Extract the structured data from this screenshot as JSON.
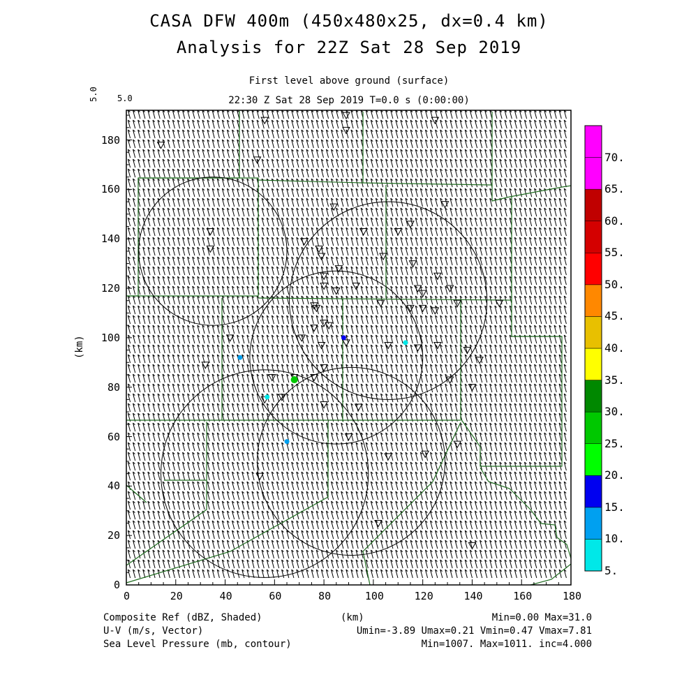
{
  "header": {
    "title_line1": "CASA DFW 400m (450x480x25, dx=0.4 km)",
    "title_line2": "Analysis for 22Z Sat 28 Sep 2019",
    "level": "First level above ground (surface)",
    "time": "22:30 Z Sat 28 Sep 2019    T=0.0 s (0:00:00)",
    "scale_rot": "5.0",
    "scale_label": "5.0"
  },
  "axes": {
    "x_ticks": [
      "0",
      "20",
      "40",
      "60",
      "80",
      "100",
      "120",
      "140",
      "160",
      "180"
    ],
    "y_ticks": [
      "0",
      "20",
      "40",
      "60",
      "80",
      "100",
      "120",
      "140",
      "160",
      "180"
    ],
    "x_label": "(km)",
    "y_label": "(km)"
  },
  "colorbar": {
    "labels": [
      "5.",
      "10.",
      "15.",
      "20.",
      "25.",
      "30.",
      "35.",
      "40.",
      "45.",
      "50.",
      "55.",
      "60.",
      "65.",
      "70."
    ],
    "colors": [
      "#00e8e8",
      "#00a0f0",
      "#0000f0",
      "#00ff00",
      "#00c800",
      "#008800",
      "#ffff00",
      "#e8c000",
      "#ff8800",
      "#ff0000",
      "#d40000",
      "#c00000",
      "#ff00ff",
      "#ff00ff"
    ]
  },
  "footer": {
    "line1_left": "Composite Ref (dBZ, Shaded)",
    "line2_left": "U-V (m/s, Vector)",
    "line3_left": "Sea Level Pressure (mb, contour)",
    "line1_right": "Min=0.00 Max=31.0",
    "line2_right": "Umin=-3.89 Umax=0.21 Vmin=0.47 Vmax=7.81",
    "line3_right": "Min=1007. Max=1011. inc=4.000"
  },
  "map_data": {
    "domain_km": [
      0,
      180,
      0,
      190
    ],
    "radar_rings_km": [
      {
        "cx": 35,
        "cy": 135,
        "r": 30
      },
      {
        "cx": 106,
        "cy": 115,
        "r": 40
      },
      {
        "cx": 85,
        "cy": 92,
        "r": 35
      },
      {
        "cx": 56,
        "cy": 45,
        "r": 42
      },
      {
        "cx": 91,
        "cy": 50,
        "r": 38
      }
    ],
    "echoes_km": [
      {
        "x": 46,
        "y": 92,
        "dbz": 12
      },
      {
        "x": 88,
        "y": 100,
        "dbz": 15
      },
      {
        "x": 113,
        "y": 98,
        "dbz": 8
      },
      {
        "x": 68,
        "y": 83,
        "dbz": 28
      },
      {
        "x": 65,
        "y": 58,
        "dbz": 14
      },
      {
        "x": 57,
        "y": 76,
        "dbz": 7
      }
    ],
    "stations_km": [
      [
        34,
        143
      ],
      [
        34,
        136
      ],
      [
        14,
        178
      ],
      [
        53,
        172
      ],
      [
        56,
        188
      ],
      [
        89,
        190
      ],
      [
        89,
        184
      ],
      [
        125,
        188
      ],
      [
        84,
        153
      ],
      [
        96,
        143
      ],
      [
        110,
        143
      ],
      [
        115,
        146
      ],
      [
        129,
        154
      ],
      [
        72,
        139
      ],
      [
        78,
        136
      ],
      [
        79,
        133
      ],
      [
        86,
        128
      ],
      [
        80,
        125
      ],
      [
        80,
        121
      ],
      [
        85,
        119
      ],
      [
        93,
        121
      ],
      [
        104,
        133
      ],
      [
        116,
        130
      ],
      [
        120,
        118
      ],
      [
        118,
        120
      ],
      [
        126,
        125
      ],
      [
        131,
        120
      ],
      [
        103,
        114
      ],
      [
        115,
        112
      ],
      [
        120,
        112
      ],
      [
        125,
        111
      ],
      [
        134,
        114
      ],
      [
        151,
        114
      ],
      [
        76,
        113
      ],
      [
        77,
        112
      ],
      [
        80,
        106
      ],
      [
        82,
        105
      ],
      [
        76,
        104
      ],
      [
        71,
        100
      ],
      [
        79,
        97
      ],
      [
        89,
        98
      ],
      [
        106,
        97
      ],
      [
        118,
        96
      ],
      [
        126,
        97
      ],
      [
        138,
        95
      ],
      [
        143,
        91
      ],
      [
        32,
        89
      ],
      [
        42,
        100
      ],
      [
        80,
        88
      ],
      [
        76,
        84
      ],
      [
        68,
        84
      ],
      [
        59,
        84
      ],
      [
        56,
        75
      ],
      [
        63,
        76
      ],
      [
        80,
        73
      ],
      [
        94,
        72
      ],
      [
        131,
        83
      ],
      [
        140,
        80
      ],
      [
        90,
        60
      ],
      [
        106,
        52
      ],
      [
        121,
        53
      ],
      [
        134,
        57
      ],
      [
        54,
        44
      ],
      [
        102,
        25
      ],
      [
        140,
        16
      ]
    ]
  }
}
